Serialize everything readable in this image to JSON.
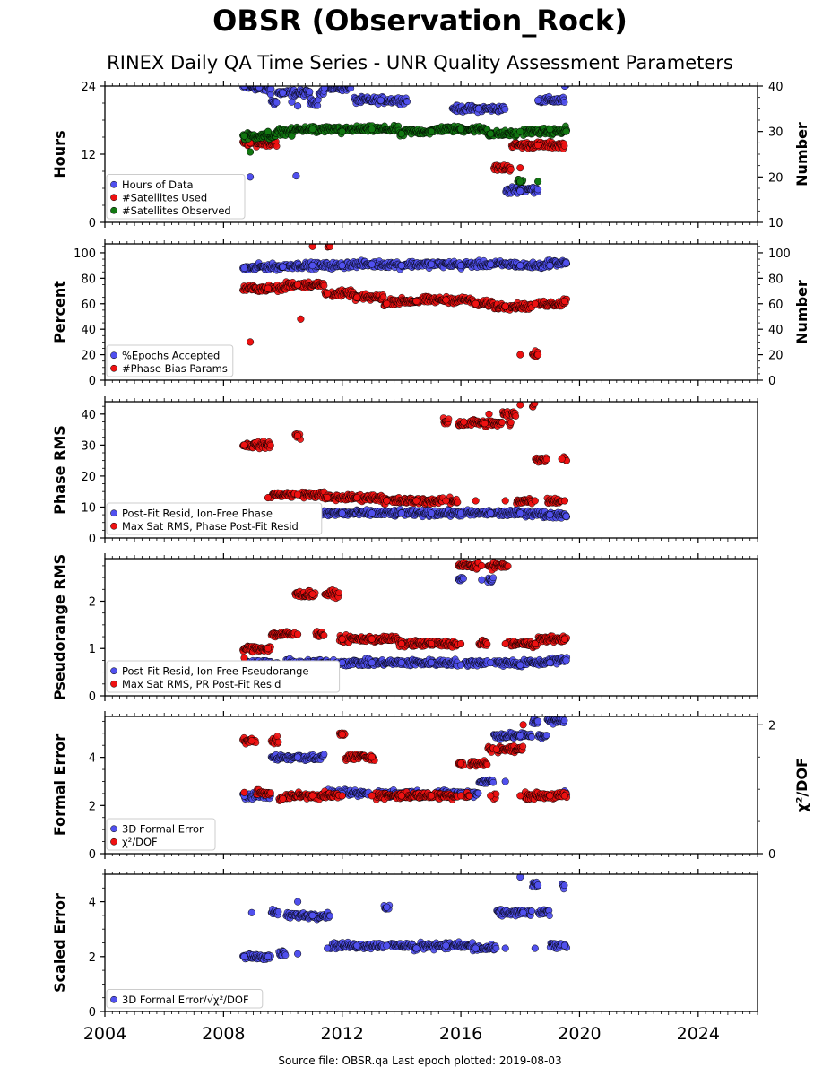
{
  "header": {
    "title": "OBSR (Observation_Rock)",
    "subtitle": "RINEX Daily QA Time Series - UNR Quality Assessment Parameters"
  },
  "footer": {
    "source": "Source file: OBSR.qa Last epoch plotted: 2019-08-03"
  },
  "colors": {
    "blue": "#5050ee",
    "red": "#ee1111",
    "green": "#117711"
  },
  "x_axis": {
    "range": [
      2004.0,
      2026.0
    ],
    "ticks": [
      2004,
      2008,
      2012,
      2016,
      2020,
      2024
    ],
    "tick_labels": [
      "2004",
      "2008",
      "2012",
      "2016",
      "2020",
      "2024"
    ]
  },
  "chart_data": [
    {
      "type": "scatter",
      "ylabel": "Hours",
      "y2label": "Number",
      "ylim": [
        0,
        24
      ],
      "yticks": [
        0,
        12,
        24
      ],
      "y2lim": [
        10,
        40
      ],
      "y2ticks": [
        10,
        20,
        30,
        40
      ],
      "legend": "lower-left",
      "series": [
        {
          "name": "Hours of Data",
          "color": "blue",
          "axis": "left",
          "points": [
            [
              2008.7,
              24
            ],
            [
              2009.2,
              23.8
            ],
            [
              2009.6,
              23.5
            ],
            [
              2010.0,
              22.8
            ],
            [
              2010.3,
              21.2
            ],
            [
              2010.5,
              20.5
            ],
            [
              2010.9,
              23.0
            ],
            [
              2011.4,
              23.7
            ],
            [
              2013.3,
              21.5
            ],
            [
              2016.6,
              20.0
            ],
            [
              2018.6,
              21.5
            ],
            [
              2019.5,
              24
            ],
            [
              2008.9,
              8.0
            ],
            [
              2010.45,
              8.2
            ],
            [
              2018.0,
              5.5
            ],
            [
              2018.6,
              5.8
            ]
          ]
        },
        {
          "name": "#Satellites Used",
          "color": "red",
          "axis": "right",
          "points": [
            [
              2008.9,
              27.5
            ],
            [
              2018.0,
              22.0
            ],
            [
              2018.6,
              27.0
            ]
          ]
        },
        {
          "name": "#Satellites Observed",
          "color": "green",
          "axis": "right",
          "points": [
            [
              2008.7,
              29.0
            ],
            [
              2009.5,
              30.0
            ],
            [
              2010.3,
              29.0
            ],
            [
              2011.0,
              30.5
            ],
            [
              2012.0,
              30.0
            ],
            [
              2013.0,
              30.5
            ],
            [
              2014.0,
              29.5
            ],
            [
              2015.0,
              30.0
            ],
            [
              2016.0,
              30.5
            ],
            [
              2017.0,
              29.5
            ],
            [
              2018.0,
              30.0
            ],
            [
              2019.0,
              30.5
            ],
            [
              2019.55,
              30.0
            ],
            [
              2008.9,
              25.5
            ],
            [
              2018.0,
              19.0
            ],
            [
              2018.6,
              19.0
            ]
          ]
        }
      ]
    },
    {
      "type": "scatter",
      "ylabel": "Percent",
      "y2label": "Number",
      "ylim": [
        0,
        107
      ],
      "yticks": [
        0,
        20,
        40,
        60,
        80,
        100
      ],
      "y2lim": [
        0,
        107
      ],
      "y2ticks": [
        0,
        20,
        40,
        60,
        80,
        100
      ],
      "legend": "lower-left",
      "series": [
        {
          "name": "%Epochs Accepted",
          "color": "blue",
          "axis": "left",
          "points": [
            [
              2008.7,
              88
            ],
            [
              2010.0,
              89
            ],
            [
              2011.0,
              90
            ],
            [
              2012.0,
              90
            ],
            [
              2013.0,
              91
            ],
            [
              2014.0,
              90
            ],
            [
              2015.0,
              91
            ],
            [
              2016.0,
              90
            ],
            [
              2017.0,
              91
            ],
            [
              2018.0,
              90
            ],
            [
              2019.0,
              90
            ],
            [
              2019.55,
              92
            ]
          ]
        },
        {
          "name": "#Phase Bias Params",
          "color": "red",
          "axis": "right",
          "points": [
            [
              2008.9,
              30
            ],
            [
              2011.0,
              105
            ],
            [
              2010.6,
              48
            ],
            [
              2018.0,
              20
            ],
            [
              2018.6,
              20
            ],
            [
              2009.5,
              72
            ],
            [
              2010.5,
              75
            ],
            [
              2011.5,
              68
            ],
            [
              2012.5,
              65
            ],
            [
              2013.5,
              60
            ],
            [
              2014.5,
              62
            ],
            [
              2015.5,
              63
            ],
            [
              2016.5,
              60
            ],
            [
              2017.5,
              58
            ],
            [
              2018.5,
              60
            ],
            [
              2019.5,
              62
            ]
          ]
        }
      ]
    },
    {
      "type": "scatter",
      "ylabel": "Phase RMS",
      "ylim": [
        0,
        44
      ],
      "yticks": [
        0,
        10,
        20,
        30,
        40
      ],
      "legend": "lower-left",
      "series": [
        {
          "name": "Post-Fit Resid, Ion-Free Phase",
          "color": "blue",
          "axis": "left",
          "points": [
            [
              2008.7,
              8
            ],
            [
              2010.0,
              7.5
            ],
            [
              2011.0,
              8
            ],
            [
              2012.0,
              8
            ],
            [
              2013.0,
              8
            ],
            [
              2014.0,
              8
            ],
            [
              2015.0,
              8
            ],
            [
              2016.0,
              8
            ],
            [
              2017.0,
              8
            ],
            [
              2018.0,
              8
            ],
            [
              2019.0,
              7.5
            ],
            [
              2019.55,
              7
            ]
          ]
        },
        {
          "name": "Max Sat RMS, Phase Post-Fit Resid",
          "color": "red",
          "axis": "left",
          "points": [
            [
              2008.7,
              30
            ],
            [
              2010.5,
              33
            ],
            [
              2016.1,
              37.5
            ],
            [
              2016.8,
              37
            ],
            [
              2016.95,
              40
            ],
            [
              2018.0,
              43
            ],
            [
              2019.4,
              25.5
            ],
            [
              2009.5,
              13
            ],
            [
              2010.5,
              14
            ],
            [
              2011.5,
              13
            ],
            [
              2012.5,
              13
            ],
            [
              2013.5,
              12
            ],
            [
              2014.5,
              12
            ],
            [
              2015.5,
              12
            ],
            [
              2016.5,
              12
            ],
            [
              2017.5,
              12
            ],
            [
              2018.5,
              12
            ],
            [
              2019.5,
              12
            ]
          ]
        }
      ]
    },
    {
      "type": "scatter",
      "ylabel": "Pseudorange RMS",
      "ylim": [
        0,
        2.9
      ],
      "yticks": [
        0,
        1,
        2
      ],
      "legend": "lower-left",
      "series": [
        {
          "name": "Post-Fit Resid, Ion-Free Pseudorange",
          "color": "blue",
          "axis": "left",
          "points": [
            [
              2008.7,
              0.7
            ],
            [
              2010.0,
              0.65
            ],
            [
              2011.0,
              0.7
            ],
            [
              2012.0,
              0.7
            ],
            [
              2013.0,
              0.7
            ],
            [
              2014.0,
              0.7
            ],
            [
              2015.0,
              0.7
            ],
            [
              2016.0,
              0.65
            ],
            [
              2017.0,
              0.7
            ],
            [
              2018.0,
              0.65
            ],
            [
              2019.0,
              0.7
            ],
            [
              2019.55,
              0.75
            ],
            [
              2016.7,
              2.45
            ]
          ]
        },
        {
          "name": "Max Sat RMS, PR Post-Fit Resid",
          "color": "red",
          "axis": "left",
          "points": [
            [
              2008.7,
              0.8
            ],
            [
              2009.5,
              1.0
            ],
            [
              2010.5,
              1.3
            ],
            [
              2011.0,
              2.15
            ],
            [
              2012.0,
              1.2
            ],
            [
              2013.0,
              1.2
            ],
            [
              2014.0,
              1.1
            ],
            [
              2015.0,
              1.1
            ],
            [
              2016.0,
              1.1
            ],
            [
              2016.7,
              2.75
            ],
            [
              2017.5,
              1.1
            ],
            [
              2018.5,
              1.1
            ],
            [
              2019.5,
              1.2
            ]
          ]
        }
      ]
    },
    {
      "type": "scatter",
      "ylabel": "Formal Error",
      "y2label": "χ²/DOF",
      "ylim": [
        0,
        5.7
      ],
      "yticks": [
        0,
        2,
        4
      ],
      "y2lim": [
        0,
        2.13
      ],
      "y2ticks": [
        0,
        2
      ],
      "legend": "lower-left",
      "series": [
        {
          "name": "3D Formal Error",
          "color": "blue",
          "axis": "left",
          "points": [
            [
              2008.7,
              2.4
            ],
            [
              2010.5,
              4.0
            ],
            [
              2012.0,
              2.5
            ],
            [
              2014.0,
              2.5
            ],
            [
              2016.0,
              2.5
            ],
            [
              2017.5,
              3.0
            ],
            [
              2018.0,
              4.9
            ],
            [
              2018.6,
              5.5
            ],
            [
              2019.5,
              2.6
            ]
          ]
        },
        {
          "name": "χ²/DOF",
          "color": "red",
          "axis": "right",
          "points": [
            [
              2008.7,
              0.95
            ],
            [
              2008.95,
              1.75
            ],
            [
              2012.0,
              1.85
            ],
            [
              2013.0,
              1.5
            ],
            [
              2016.0,
              1.4
            ],
            [
              2017.2,
              1.62
            ],
            [
              2018.1,
              2.0
            ],
            [
              2019.5,
              0.9
            ],
            [
              2010.0,
              0.85
            ],
            [
              2011.0,
              0.9
            ],
            [
              2012.0,
              0.9
            ],
            [
              2013.0,
              0.9
            ],
            [
              2014.0,
              0.9
            ],
            [
              2015.0,
              0.9
            ],
            [
              2016.0,
              0.9
            ],
            [
              2017.0,
              0.9
            ],
            [
              2018.0,
              0.9
            ],
            [
              2019.0,
              0.9
            ]
          ]
        }
      ]
    },
    {
      "type": "scatter",
      "ylabel": "Scaled Error",
      "ylim": [
        0,
        5.0
      ],
      "yticks": [
        0,
        2,
        4
      ],
      "legend": "lower-left",
      "series": [
        {
          "name": "3D Formal Error/√χ²/DOF",
          "color": "blue",
          "axis": "left",
          "points": [
            [
              2008.7,
              2.0
            ],
            [
              2008.95,
              3.6
            ],
            [
              2010.5,
              4.0
            ],
            [
              2011.0,
              3.5
            ],
            [
              2013.5,
              3.8
            ],
            [
              2018.0,
              4.9
            ],
            [
              2018.1,
              3.6
            ],
            [
              2018.6,
              4.6
            ],
            [
              2009.5,
              2.0
            ],
            [
              2010.5,
              2.1
            ],
            [
              2011.5,
              2.3
            ],
            [
              2012.5,
              2.4
            ],
            [
              2013.5,
              2.4
            ],
            [
              2014.5,
              2.3
            ],
            [
              2015.5,
              2.4
            ],
            [
              2016.5,
              2.3
            ],
            [
              2017.5,
              2.3
            ],
            [
              2018.5,
              2.3
            ],
            [
              2019.5,
              2.4
            ]
          ]
        }
      ]
    }
  ]
}
